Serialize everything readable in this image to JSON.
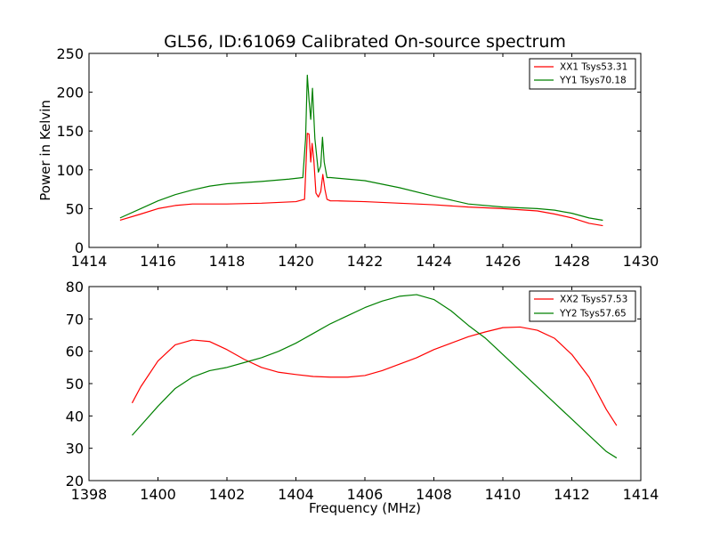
{
  "chart_data": [
    {
      "type": "line",
      "title": "GL56, ID:61069 Calibrated On-source spectrum",
      "xlabel": "",
      "ylabel": "Power in Kelvin",
      "xlim": [
        1414,
        1430
      ],
      "ylim": [
        0,
        250
      ],
      "xticks": [
        1414,
        1416,
        1418,
        1420,
        1422,
        1424,
        1426,
        1428,
        1430
      ],
      "yticks": [
        0,
        50,
        100,
        150,
        200,
        250
      ],
      "legend_position": "top-right",
      "grid": false,
      "series": [
        {
          "name": "XX1 Tsys53.31",
          "color": "#ff0000",
          "x": [
            1414.9,
            1415.5,
            1416.0,
            1416.5,
            1417.0,
            1418.0,
            1419.0,
            1420.0,
            1420.25,
            1420.33,
            1420.38,
            1420.43,
            1420.47,
            1420.52,
            1420.58,
            1420.65,
            1420.72,
            1420.78,
            1420.84,
            1420.9,
            1421.0,
            1421.2,
            1422.0,
            1423.0,
            1424.0,
            1425.0,
            1426.0,
            1427.0,
            1427.5,
            1428.0,
            1428.5,
            1428.9
          ],
          "y": [
            35,
            43,
            50,
            54,
            56,
            56,
            57,
            59,
            62,
            147,
            146,
            110,
            134,
            112,
            70,
            65,
            72,
            94,
            75,
            62,
            60,
            60,
            59,
            57,
            55,
            52,
            50,
            47,
            43,
            38,
            31,
            28
          ]
        },
        {
          "name": "YY1 Tsys70.18",
          "color": "#008000",
          "x": [
            1414.9,
            1415.5,
            1416.0,
            1416.5,
            1417.0,
            1417.5,
            1418.0,
            1419.0,
            1419.8,
            1420.2,
            1420.28,
            1420.33,
            1420.38,
            1420.43,
            1420.48,
            1420.55,
            1420.65,
            1420.72,
            1420.77,
            1420.82,
            1420.9,
            1421.0,
            1422.0,
            1423.0,
            1424.0,
            1425.0,
            1426.0,
            1427.0,
            1427.5,
            1428.0,
            1428.5,
            1428.9
          ],
          "y": [
            38,
            50,
            60,
            68,
            74,
            79,
            82,
            85,
            88,
            90,
            140,
            222,
            190,
            165,
            205,
            140,
            97,
            105,
            142,
            110,
            90,
            90,
            86,
            77,
            66,
            56,
            52,
            50,
            48,
            44,
            38,
            35
          ]
        }
      ]
    },
    {
      "type": "line",
      "title": "",
      "xlabel": "Frequency (MHz)",
      "ylabel": "",
      "xlim": [
        1398,
        1414
      ],
      "ylim": [
        20,
        80
      ],
      "xticks": [
        1398,
        1400,
        1402,
        1404,
        1406,
        1408,
        1410,
        1412,
        1414
      ],
      "yticks": [
        20,
        30,
        40,
        50,
        60,
        70,
        80
      ],
      "legend_position": "top-right",
      "grid": false,
      "series": [
        {
          "name": "XX2 Tsys57.53",
          "color": "#ff0000",
          "x": [
            1399.25,
            1399.5,
            1400.0,
            1400.5,
            1401.0,
            1401.5,
            1402.0,
            1402.5,
            1403.0,
            1403.5,
            1404.0,
            1404.5,
            1405.0,
            1405.5,
            1406.0,
            1406.5,
            1407.0,
            1407.5,
            1408.0,
            1408.5,
            1409.0,
            1409.5,
            1410.0,
            1410.5,
            1411.0,
            1411.5,
            1412.0,
            1412.5,
            1413.0,
            1413.3
          ],
          "y": [
            44,
            49,
            57,
            62,
            63.5,
            63,
            60.5,
            57.5,
            55,
            53.5,
            52.8,
            52.2,
            52,
            52,
            52.5,
            54,
            56,
            58,
            60.5,
            62.5,
            64.5,
            66,
            67.3,
            67.5,
            66.5,
            64,
            59,
            52,
            42,
            37
          ]
        },
        {
          "name": "YY2 Tsys57.65",
          "color": "#008000",
          "x": [
            1399.25,
            1399.5,
            1400.0,
            1400.5,
            1401.0,
            1401.5,
            1402.0,
            1402.5,
            1403.0,
            1403.5,
            1404.0,
            1404.5,
            1405.0,
            1405.5,
            1406.0,
            1406.5,
            1407.0,
            1407.5,
            1408.0,
            1408.5,
            1409.0,
            1409.5,
            1410.0,
            1410.5,
            1411.0,
            1411.5,
            1412.0,
            1412.5,
            1413.0,
            1413.3
          ],
          "y": [
            34,
            37,
            43,
            48.5,
            52,
            54,
            55,
            56.5,
            58,
            60,
            62.5,
            65.5,
            68.5,
            71,
            73.5,
            75.5,
            77,
            77.5,
            76,
            72.5,
            68,
            64,
            59,
            54,
            49,
            44,
            39,
            34,
            29,
            27
          ]
        }
      ]
    }
  ]
}
